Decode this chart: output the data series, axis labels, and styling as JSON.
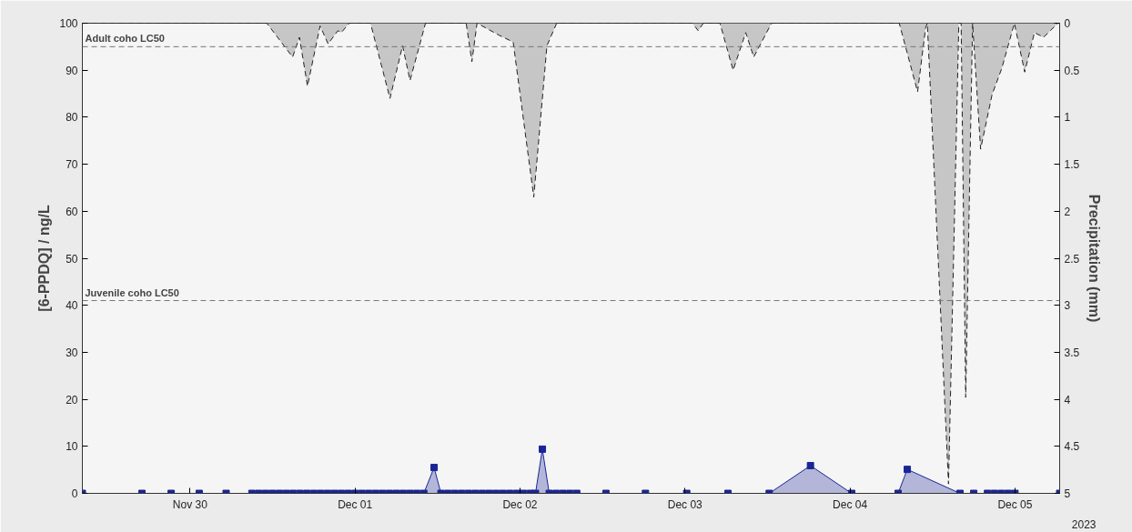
{
  "chart_data": {
    "type": "area",
    "ylabel": "[6-PPDQ] / ng/L",
    "y2label": "Precipitation (mm)",
    "xlim": [
      "2023-11-29T08:20",
      "2023-12-05T06:30"
    ],
    "xticks": [
      {
        "value": "2023-11-30",
        "label": "Nov 30"
      },
      {
        "value": "2023-12-01",
        "label": "Dec 01"
      },
      {
        "value": "2023-12-02",
        "label": "Dec 02"
      },
      {
        "value": "2023-12-03",
        "label": "Dec 03"
      },
      {
        "value": "2023-12-04",
        "label": "Dec 04"
      },
      {
        "value": "2023-12-05",
        "label": "Dec 05"
      }
    ],
    "ylim": [
      0,
      100
    ],
    "yticks": [
      0,
      10,
      20,
      30,
      40,
      50,
      60,
      70,
      80,
      90,
      100
    ],
    "y2lim": [
      5,
      0
    ],
    "y2ticks": [
      0,
      0.5,
      1,
      1.5,
      2,
      2.5,
      3,
      3.5,
      4,
      4.5,
      5
    ],
    "grid": false,
    "ref_lines": [
      {
        "axis": "y",
        "value": 95,
        "label": "Adult coho LC50",
        "color": "#777777",
        "line_style": "dashed"
      },
      {
        "axis": "y",
        "value": 41,
        "label": "Juvenile coho LC50",
        "color": "#777777",
        "line_style": "dashed"
      }
    ],
    "annotations": [
      "2023"
    ],
    "series": [
      {
        "axis": "y2",
        "color": "#c6c6c6",
        "line_style": "dashed",
        "marker": "none",
        "x": [
          "2023-11-29T08:20",
          "2023-11-30T11:10",
          "2023-11-30T14:55",
          "2023-11-30T15:55",
          "2023-11-30T17:05",
          "2023-11-30T18:55",
          "2023-11-30T20:05",
          "2023-11-30T21:30",
          "2023-11-30T22:00",
          "2023-11-30T23:10",
          "2023-12-01T02:15",
          "2023-12-01T05:05",
          "2023-12-01T06:55",
          "2023-12-01T08:00",
          "2023-12-01T10:15",
          "2023-12-01T16:10",
          "2023-12-01T17:00",
          "2023-12-01T17:45",
          "2023-12-01T21:00",
          "2023-12-01T23:00",
          "2023-12-02T02:00",
          "2023-12-02T03:55",
          "2023-12-02T05:20",
          "2023-12-03T01:05",
          "2023-12-03T01:55",
          "2023-12-03T02:40",
          "2023-12-03T05:05",
          "2023-12-03T07:00",
          "2023-12-03T08:50",
          "2023-12-03T10:00",
          "2023-12-03T12:35",
          "2023-12-04T07:10",
          "2023-12-04T09:50",
          "2023-12-04T11:00",
          "2023-12-04T11:15",
          "2023-12-04T14:20",
          "2023-12-04T15:50",
          "2023-12-04T16:10",
          "2023-12-04T16:50",
          "2023-12-04T17:50",
          "2023-12-04T19:00",
          "2023-12-04T20:40",
          "2023-12-04T22:05",
          "2023-12-04T23:55",
          "2023-12-05T01:25",
          "2023-12-05T02:50",
          "2023-12-05T04:10",
          "2023-12-05T06:15",
          "2023-12-05T06:30"
        ],
        "values": [
          0,
          0,
          0.36,
          0.15,
          0.67,
          0.03,
          0.22,
          0.08,
          0.1,
          0,
          0,
          0.8,
          0.24,
          0.61,
          0,
          0,
          0.41,
          0,
          0.13,
          0.2,
          1.85,
          0.24,
          0,
          0,
          0.08,
          0,
          0,
          0.5,
          0.1,
          0.36,
          0,
          0,
          0.73,
          0.05,
          0,
          4.9,
          0,
          0,
          3.98,
          0,
          1.34,
          0.76,
          0.48,
          0,
          0.52,
          0.1,
          0.15,
          0,
          0
        ]
      },
      {
        "color": "#1a2696",
        "line_style": "solid",
        "marker": "square",
        "x": [
          "2023-11-29T08:20",
          "2023-11-29T17:00",
          "2023-11-29T21:15",
          "2023-11-30T01:20",
          "2023-11-30T05:15",
          "2023-11-30T09:00",
          "2023-11-30T10:00",
          "2023-11-30T11:00",
          "2023-11-30T12:00",
          "2023-11-30T13:00",
          "2023-11-30T14:00",
          "2023-11-30T15:00",
          "2023-11-30T16:00",
          "2023-11-30T17:00",
          "2023-11-30T18:00",
          "2023-11-30T19:00",
          "2023-11-30T20:00",
          "2023-11-30T21:00",
          "2023-11-30T22:00",
          "2023-11-30T23:00",
          "2023-12-01T00:00",
          "2023-12-01T01:00",
          "2023-12-01T02:00",
          "2023-12-01T03:00",
          "2023-12-01T04:00",
          "2023-12-01T05:00",
          "2023-12-01T06:00",
          "2023-12-01T07:00",
          "2023-12-01T08:00",
          "2023-12-01T09:00",
          "2023-12-01T10:00",
          "2023-12-01T11:30",
          "2023-12-01T12:30",
          "2023-12-01T13:30",
          "2023-12-01T14:30",
          "2023-12-01T15:30",
          "2023-12-01T16:30",
          "2023-12-01T17:30",
          "2023-12-01T18:30",
          "2023-12-01T19:30",
          "2023-12-01T20:30",
          "2023-12-01T21:30",
          "2023-12-01T22:30",
          "2023-12-01T23:30",
          "2023-12-02T00:30",
          "2023-12-02T01:30",
          "2023-12-02T02:15",
          "2023-12-02T03:15",
          "2023-12-02T04:15",
          "2023-12-02T05:15",
          "2023-12-02T06:15",
          "2023-12-02T07:15",
          "2023-12-02T08:15",
          "2023-12-02T12:30",
          "2023-12-02T18:15",
          "2023-12-03T00:15",
          "2023-12-03T06:15",
          "2023-12-03T12:15",
          "2023-12-03T18:15",
          "2023-12-04T00:15",
          "2023-12-04T07:00",
          "2023-12-04T08:20",
          "2023-12-04T16:00",
          "2023-12-04T18:00",
          "2023-12-04T20:00",
          "2023-12-04T21:00",
          "2023-12-04T22:00",
          "2023-12-04T23:00",
          "2023-12-05T00:00",
          "2023-12-05T06:30"
        ],
        "values": [
          0,
          0,
          0,
          0,
          0,
          0,
          0,
          0,
          0,
          0,
          0,
          0,
          0,
          0,
          0,
          0,
          0,
          0,
          0,
          0,
          0,
          0,
          0,
          0,
          0,
          0,
          0,
          0,
          0,
          0,
          0,
          5.5,
          0,
          0,
          0,
          0,
          0,
          0,
          0,
          0,
          0,
          0,
          0,
          0,
          0,
          0,
          0,
          9.4,
          0,
          0,
          0,
          0,
          0,
          0,
          0,
          0,
          0,
          0,
          5.9,
          0,
          0,
          5.1,
          0,
          0,
          0,
          0,
          0,
          0,
          0,
          0
        ]
      }
    ]
  }
}
